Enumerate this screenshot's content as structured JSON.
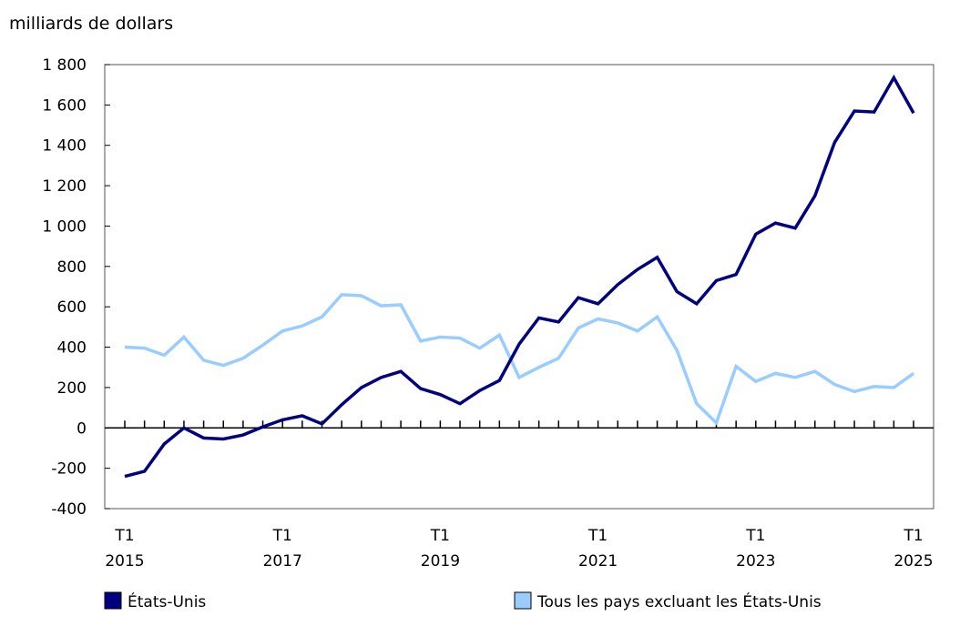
{
  "chart_data": {
    "type": "line",
    "ylabel": "milliards de dollars",
    "ylim": [
      -400,
      1800
    ],
    "yticks": [
      -400,
      -200,
      0,
      200,
      400,
      600,
      800,
      1000,
      1200,
      1400,
      1600,
      1800
    ],
    "ytick_labels": [
      "-400",
      "-200",
      "0",
      "200",
      "400",
      "600",
      "800",
      "1 000",
      "1 200",
      "1 400",
      "1 600",
      "1 800"
    ],
    "x_start": "2015T1",
    "x_labels": [
      {
        "quarter": "T1",
        "year": "2015",
        "index": 0
      },
      {
        "quarter": "T1",
        "year": "2017",
        "index": 8
      },
      {
        "quarter": "T1",
        "year": "2019",
        "index": 16
      },
      {
        "quarter": "T1",
        "year": "2021",
        "index": 24
      },
      {
        "quarter": "T1",
        "year": "2023",
        "index": 32
      },
      {
        "quarter": "T1",
        "year": "2025",
        "index": 40
      }
    ],
    "grid": false,
    "legend_position": "bottom",
    "series": [
      {
        "name": "États-Unis",
        "color": "#000080",
        "values": [
          -240,
          -215,
          -80,
          0,
          -50,
          -55,
          -35,
          5,
          40,
          60,
          20,
          115,
          200,
          250,
          280,
          195,
          165,
          120,
          185,
          235,
          415,
          545,
          525,
          645,
          615,
          710,
          785,
          845,
          675,
          615,
          730,
          760,
          960,
          1015,
          990,
          1150,
          1415,
          1570,
          1565,
          1735,
          1560
        ]
      },
      {
        "name": "Tous les pays excluant les États-Unis",
        "color": "#99ccff",
        "values": [
          400,
          395,
          360,
          450,
          335,
          310,
          345,
          410,
          480,
          505,
          550,
          660,
          655,
          605,
          610,
          430,
          450,
          445,
          395,
          460,
          250,
          300,
          345,
          495,
          540,
          520,
          480,
          550,
          385,
          120,
          25,
          305,
          230,
          270,
          250,
          280,
          215,
          180,
          205,
          200,
          270
        ]
      }
    ]
  }
}
